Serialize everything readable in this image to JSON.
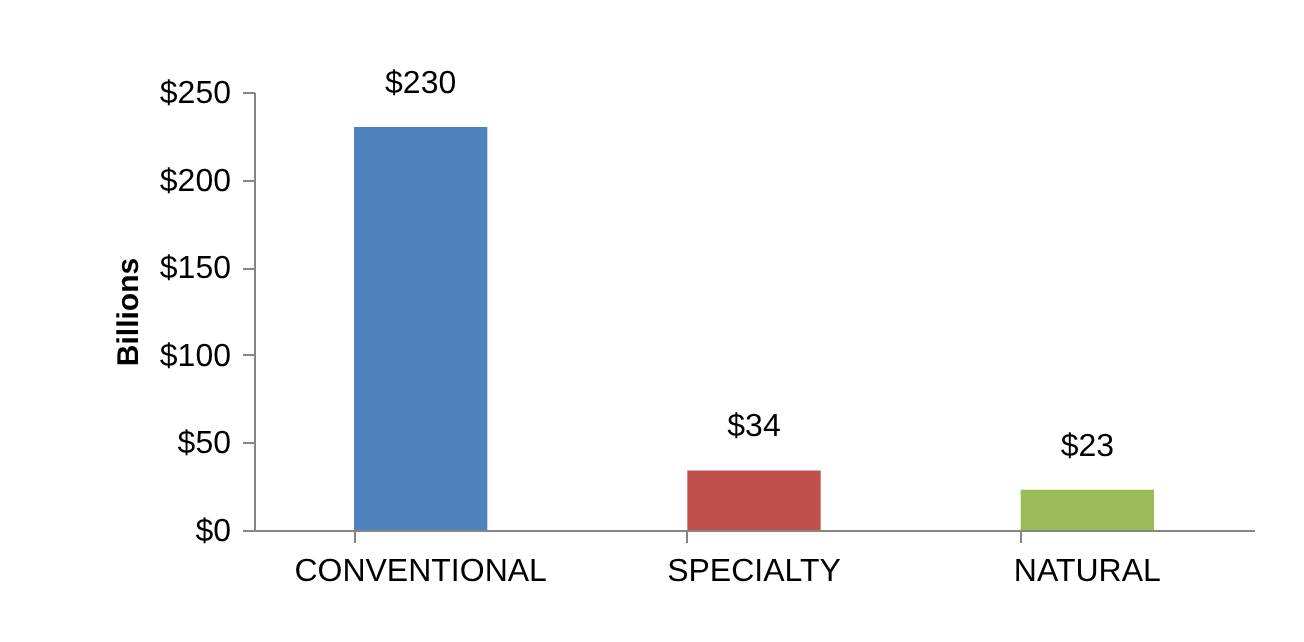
{
  "chart_data": {
    "type": "bar",
    "ylabel": "Billions",
    "categories": [
      "CONVENTIONAL",
      "SPECIALTY",
      "NATURAL"
    ],
    "values": [
      230,
      34,
      23
    ],
    "colors": [
      "#4f81bd",
      "#c0504d",
      "#9bbb59"
    ],
    "value_labels": [
      "$230",
      "$34",
      "$23"
    ],
    "ylim": [
      0,
      250
    ],
    "yticks": [
      {
        "value": 0,
        "label": "$0"
      },
      {
        "value": 50,
        "label": "$50"
      },
      {
        "value": 100,
        "label": "$100"
      },
      {
        "value": 150,
        "label": "$150"
      },
      {
        "value": 200,
        "label": "$200"
      },
      {
        "value": 250,
        "label": "$250"
      }
    ],
    "grid": false
  }
}
